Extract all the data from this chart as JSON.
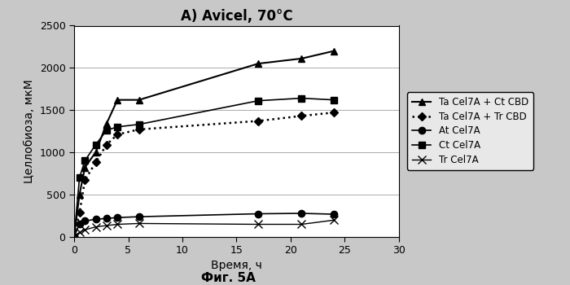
{
  "title": "A) Avicel, 70°C",
  "xlabel": "Время, ч",
  "ylabel": "Целлобиоза, мкМ",
  "caption": "Фиг. 5A",
  "xlim": [
    0,
    30
  ],
  "ylim": [
    0,
    2500
  ],
  "yticks": [
    0,
    500,
    1000,
    1500,
    2000,
    2500
  ],
  "xticks": [
    0,
    5,
    10,
    15,
    20,
    25,
    30
  ],
  "series": [
    {
      "label": "Ta Cel7A + Ct CBD",
      "x": [
        0,
        0.5,
        1,
        2,
        3,
        4,
        6,
        17,
        21,
        24
      ],
      "y": [
        0,
        500,
        820,
        1000,
        1340,
        1620,
        1620,
        2050,
        2110,
        2200
      ],
      "color": "black",
      "linestyle": "-",
      "marker": "^",
      "markersize": 6,
      "linewidth": 1.5,
      "markerfacecolor": "black"
    },
    {
      "label": "Ta Cel7A + Tr CBD",
      "x": [
        0,
        0.5,
        1,
        2,
        3,
        4,
        6,
        17,
        21,
        24
      ],
      "y": [
        0,
        280,
        670,
        880,
        1090,
        1210,
        1270,
        1370,
        1430,
        1470
      ],
      "color": "black",
      "linestyle": ":",
      "marker": "D",
      "markersize": 5,
      "linewidth": 1.8,
      "markerfacecolor": "black"
    },
    {
      "label": "At Cel7A",
      "x": [
        0,
        0.5,
        1,
        2,
        3,
        4,
        6,
        17,
        21,
        24
      ],
      "y": [
        0,
        150,
        185,
        205,
        215,
        225,
        235,
        270,
        275,
        265
      ],
      "color": "black",
      "linestyle": "-",
      "marker": "o",
      "markersize": 6,
      "linewidth": 1.2,
      "markerfacecolor": "black"
    },
    {
      "label": "Ct Cel7A",
      "x": [
        0,
        0.5,
        1,
        2,
        3,
        4,
        6,
        17,
        21,
        24
      ],
      "y": [
        0,
        700,
        900,
        1090,
        1260,
        1300,
        1330,
        1610,
        1640,
        1620
      ],
      "color": "black",
      "linestyle": "-",
      "marker": "s",
      "markersize": 6,
      "linewidth": 1.2,
      "markerfacecolor": "black"
    },
    {
      "label": "Tr Cel7A",
      "x": [
        0,
        0.5,
        1,
        2,
        3,
        4,
        6,
        17,
        21,
        24
      ],
      "y": [
        0,
        50,
        80,
        115,
        130,
        145,
        155,
        145,
        145,
        195
      ],
      "color": "black",
      "linestyle": "-",
      "marker": "x",
      "markersize": 7,
      "linewidth": 1.0,
      "markerfacecolor": "black"
    }
  ],
  "fig_facecolor": "#c8c8c8",
  "plot_facecolor": "#ffffff",
  "legend_facecolor": "#e8e8e8"
}
